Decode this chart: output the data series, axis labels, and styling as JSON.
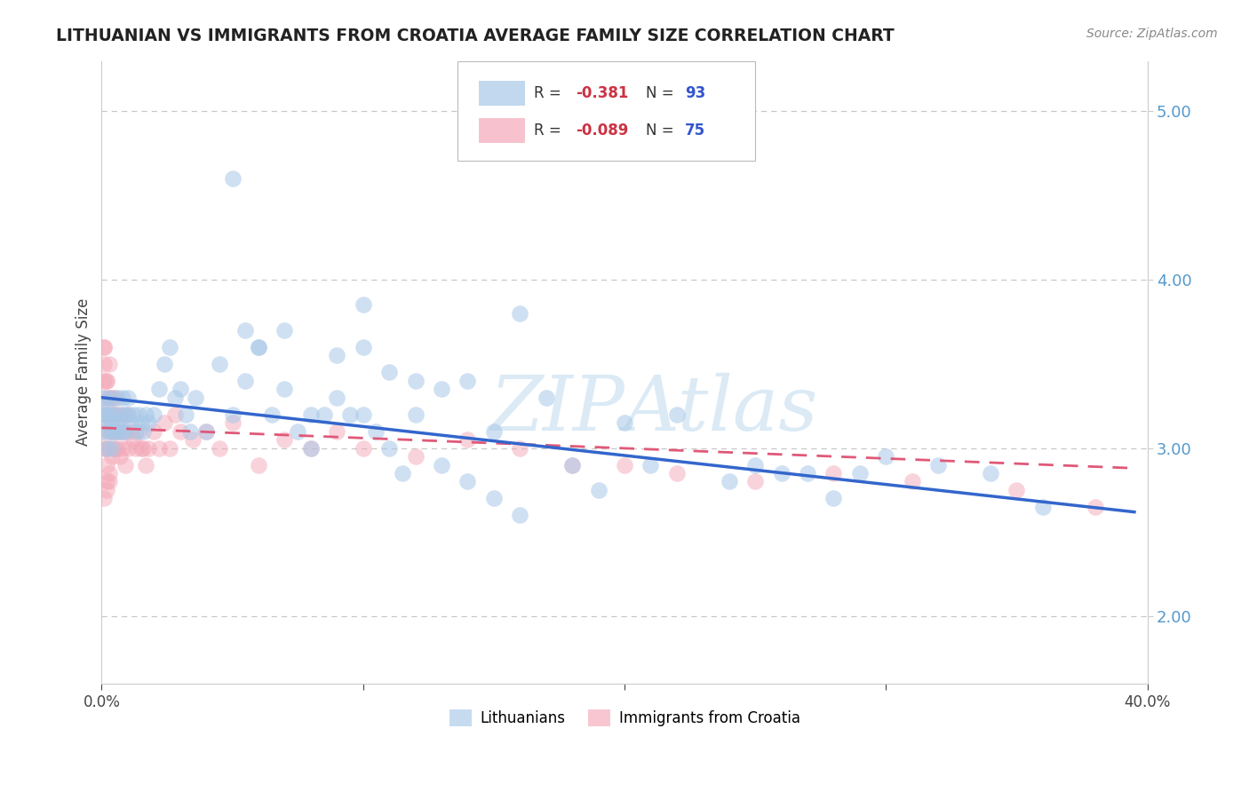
{
  "title": "LITHUANIAN VS IMMIGRANTS FROM CROATIA AVERAGE FAMILY SIZE CORRELATION CHART",
  "source": "Source: ZipAtlas.com",
  "ylabel": "Average Family Size",
  "xlim": [
    0.0,
    0.4
  ],
  "ylim": [
    1.6,
    5.3
  ],
  "yticks": [
    2.0,
    3.0,
    4.0,
    5.0
  ],
  "xticks": [
    0.0,
    0.1,
    0.2,
    0.3,
    0.4
  ],
  "xticklabels": [
    "0.0%",
    "",
    "",
    "",
    "40.0%"
  ],
  "blue_color": "#a8c8e8",
  "pink_color": "#f4a8b8",
  "blue_line_color": "#3366cc",
  "pink_line_color": "#e05878",
  "background_color": "#ffffff",
  "grid_color": "#c8c8c8",
  "title_color": "#222222",
  "right_axis_color": "#5599cc",
  "r_color": "#cc3344",
  "n_color": "#3355cc",
  "blue_scatter": {
    "x": [
      0.001,
      0.001,
      0.001,
      0.002,
      0.002,
      0.002,
      0.002,
      0.003,
      0.003,
      0.003,
      0.004,
      0.004,
      0.004,
      0.005,
      0.005,
      0.006,
      0.006,
      0.007,
      0.007,
      0.008,
      0.008,
      0.009,
      0.009,
      0.01,
      0.01,
      0.011,
      0.012,
      0.013,
      0.014,
      0.015,
      0.016,
      0.017,
      0.018,
      0.02,
      0.022,
      0.024,
      0.026,
      0.028,
      0.03,
      0.032,
      0.034,
      0.036,
      0.04,
      0.045,
      0.05,
      0.055,
      0.06,
      0.065,
      0.07,
      0.075,
      0.08,
      0.085,
      0.09,
      0.095,
      0.1,
      0.105,
      0.11,
      0.115,
      0.12,
      0.13,
      0.14,
      0.15,
      0.16,
      0.17,
      0.18,
      0.19,
      0.2,
      0.21,
      0.22,
      0.24,
      0.25,
      0.26,
      0.27,
      0.28,
      0.29,
      0.3,
      0.32,
      0.34,
      0.36,
      0.06,
      0.08,
      0.1,
      0.12,
      0.14,
      0.16,
      0.1,
      0.05,
      0.055,
      0.07,
      0.09,
      0.11,
      0.13,
      0.15
    ],
    "y": [
      3.2,
      3.1,
      3.3,
      3.2,
      3.0,
      3.15,
      3.25,
      3.1,
      3.2,
      3.3,
      3.1,
      3.15,
      3.0,
      3.2,
      3.1,
      3.15,
      3.3,
      3.1,
      3.2,
      3.1,
      3.3,
      3.2,
      3.1,
      3.2,
      3.3,
      3.15,
      3.2,
      3.1,
      3.2,
      3.15,
      3.1,
      3.2,
      3.15,
      3.2,
      3.35,
      3.5,
      3.6,
      3.3,
      3.35,
      3.2,
      3.1,
      3.3,
      3.1,
      3.5,
      3.2,
      3.4,
      3.6,
      3.2,
      3.35,
      3.1,
      3.0,
      3.2,
      3.3,
      3.2,
      3.2,
      3.1,
      3.0,
      2.85,
      3.2,
      2.9,
      2.8,
      2.7,
      2.6,
      3.3,
      2.9,
      2.75,
      3.15,
      2.9,
      3.2,
      2.8,
      2.9,
      2.85,
      2.85,
      2.7,
      2.85,
      2.95,
      2.9,
      2.85,
      2.65,
      3.6,
      3.2,
      3.6,
      3.4,
      3.4,
      3.8,
      3.85,
      4.6,
      3.7,
      3.7,
      3.55,
      3.45,
      3.35,
      3.1
    ]
  },
  "pink_scatter": {
    "x": [
      0.001,
      0.001,
      0.001,
      0.001,
      0.001,
      0.001,
      0.001,
      0.002,
      0.002,
      0.002,
      0.002,
      0.002,
      0.003,
      0.003,
      0.003,
      0.003,
      0.004,
      0.004,
      0.004,
      0.005,
      0.005,
      0.005,
      0.006,
      0.006,
      0.007,
      0.007,
      0.008,
      0.008,
      0.009,
      0.009,
      0.01,
      0.01,
      0.011,
      0.012,
      0.013,
      0.014,
      0.015,
      0.016,
      0.017,
      0.018,
      0.02,
      0.022,
      0.024,
      0.026,
      0.028,
      0.03,
      0.035,
      0.04,
      0.045,
      0.05,
      0.06,
      0.07,
      0.08,
      0.09,
      0.1,
      0.12,
      0.14,
      0.16,
      0.18,
      0.2,
      0.22,
      0.25,
      0.28,
      0.31,
      0.35,
      0.38,
      0.001,
      0.001,
      0.002,
      0.002,
      0.003,
      0.003,
      0.004,
      0.005,
      0.006
    ],
    "y": [
      3.5,
      3.4,
      3.6,
      3.2,
      3.3,
      3.1,
      3.0,
      3.4,
      3.2,
      3.0,
      2.9,
      2.8,
      3.3,
      3.1,
      3.0,
      2.85,
      3.2,
      3.1,
      2.95,
      3.3,
      3.1,
      3.0,
      3.2,
      3.0,
      3.1,
      2.95,
      3.2,
      3.0,
      3.1,
      2.9,
      3.2,
      3.0,
      3.1,
      3.05,
      3.0,
      3.1,
      3.0,
      3.0,
      2.9,
      3.0,
      3.1,
      3.0,
      3.15,
      3.0,
      3.2,
      3.1,
      3.05,
      3.1,
      3.0,
      3.15,
      2.9,
      3.05,
      3.0,
      3.1,
      3.0,
      2.95,
      3.05,
      3.0,
      2.9,
      2.9,
      2.85,
      2.8,
      2.85,
      2.8,
      2.75,
      2.65,
      3.6,
      2.7,
      3.4,
      2.75,
      3.5,
      2.8,
      3.3,
      3.2,
      3.1
    ]
  },
  "blue_trendline": {
    "x": [
      0.0,
      0.395
    ],
    "y": [
      3.3,
      2.62
    ]
  },
  "pink_trendline": {
    "x": [
      0.0,
      0.395
    ],
    "y": [
      3.12,
      2.88
    ]
  },
  "legend_r1": "-0.381",
  "legend_n1": "93",
  "legend_r2": "-0.089",
  "legend_n2": "75",
  "watermark": "ZIPAtlas"
}
